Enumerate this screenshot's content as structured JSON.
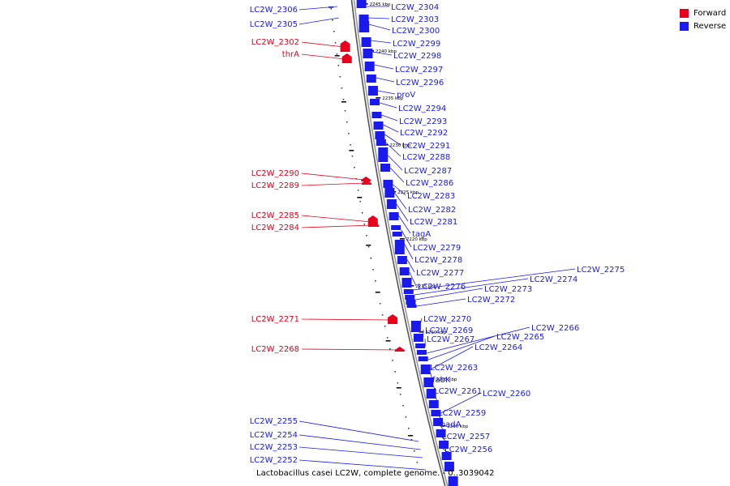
{
  "colors": {
    "forward": "#e8001c",
    "reverse": "#1a1aee",
    "backbone": "#7f7f7f",
    "tick": "#111111"
  },
  "legend": {
    "title": "",
    "items": [
      {
        "label": "Forward",
        "color": "#e8001c"
      },
      {
        "label": "Reverse",
        "color": "#1a1aee"
      }
    ]
  },
  "caption": "Lactobacillus casei LC2W, complete genome. - 0..3039042",
  "ticks": [
    {
      "label": "2245 kbp"
    },
    {
      "label": "2240 kbp"
    },
    {
      "label": "2235 kbp"
    },
    {
      "label": "2230 kbp"
    },
    {
      "label": "2225 kbp"
    },
    {
      "label": "2220 kbp"
    },
    {
      "label": "2215 kbp"
    },
    {
      "label": "2210 kbp"
    },
    {
      "label": "2205 kbp"
    },
    {
      "label": "2200 kbp"
    }
  ],
  "forward_genes": [
    "LC2W_2302",
    "thrA",
    "LC2W_2290",
    "LC2W_2289",
    "LC2W_2285",
    "LC2W_2284",
    "LC2W_2271",
    "LC2W_2268"
  ],
  "reverse_left_labels": [
    "LC2W_2306",
    "LC2W_2305",
    "LC2W_2255",
    "LC2W_2254",
    "LC2W_2253",
    "LC2W_2252"
  ],
  "reverse_right_labels": [
    "LC2W_2304",
    "LC2W_2303",
    "LC2W_2300",
    "LC2W_2299",
    "LC2W_2298",
    "LC2W_2297",
    "LC2W_2296",
    "proV",
    "LC2W_2294",
    "LC2W_2293",
    "LC2W_2292",
    "LC2W_2291",
    "LC2W_2288",
    "LC2W_2287",
    "LC2W_2286",
    "LC2W_2283",
    "LC2W_2282",
    "LC2W_2281",
    "tagA",
    "LC2W_2279",
    "LC2W_2278",
    "LC2W_2277",
    "LC2W_2276",
    "LC2W_2275",
    "LC2W_2274",
    "LC2W_2273",
    "LC2W_2272",
    "LC2W_2270",
    "LC2W_2269",
    "LC2W_2267",
    "LC2W_2266",
    "LC2W_2265",
    "LC2W_2264",
    "LC2W_2263",
    "fabK",
    "LC2W_2261",
    "LC2W_2260",
    "LC2W_2259",
    "oadA",
    "LC2W_2257",
    "LC2W_2256"
  ]
}
